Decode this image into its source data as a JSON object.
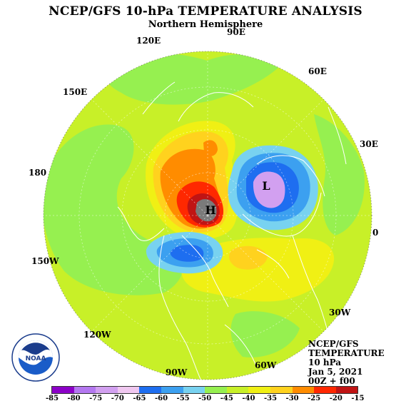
{
  "title": "NCEP/GFS 10-hPa TEMPERATURE ANALYSIS",
  "subtitle": "Northern Hemisphere",
  "lon_labels": {
    "e90": "90E",
    "e60": "60E",
    "e30": "30E",
    "zero": "0",
    "w30": "30W",
    "w60": "60W",
    "w90": "90W",
    "w120": "120W",
    "w150": "150W",
    "d180": "180",
    "e150": "150E",
    "e120": "120E"
  },
  "markers": {
    "low": "L",
    "high": "H"
  },
  "info": {
    "line1": "NCEP/GFS",
    "line2": "TEMPERATURE",
    "line3": "10 hPa",
    "line4": "Jan 5, 2021",
    "line5": "00Z + f00"
  },
  "legend": {
    "ticks": [
      "-85",
      "-80",
      "-75",
      "-70",
      "-65",
      "-60",
      "-55",
      "-50",
      "-45",
      "-40",
      "-35",
      "-30",
      "-25",
      "-20",
      "-15"
    ],
    "colors": [
      "#8c00c8",
      "#b478f0",
      "#d2a0f0",
      "#f0c8f0",
      "#1e6ef0",
      "#3ca0f0",
      "#78d2f0",
      "#96f050",
      "#c8f028",
      "#f0f014",
      "#ffd21e",
      "#ff8c00",
      "#ff2800",
      "#c01414",
      "#7a7a7a"
    ]
  },
  "logo_text": "NOAA",
  "colors": {
    "background_field": "#c8f028",
    "cold_ring": "#96f050",
    "warm_core": "#e00000",
    "cold_core": "#d2a0f0"
  }
}
